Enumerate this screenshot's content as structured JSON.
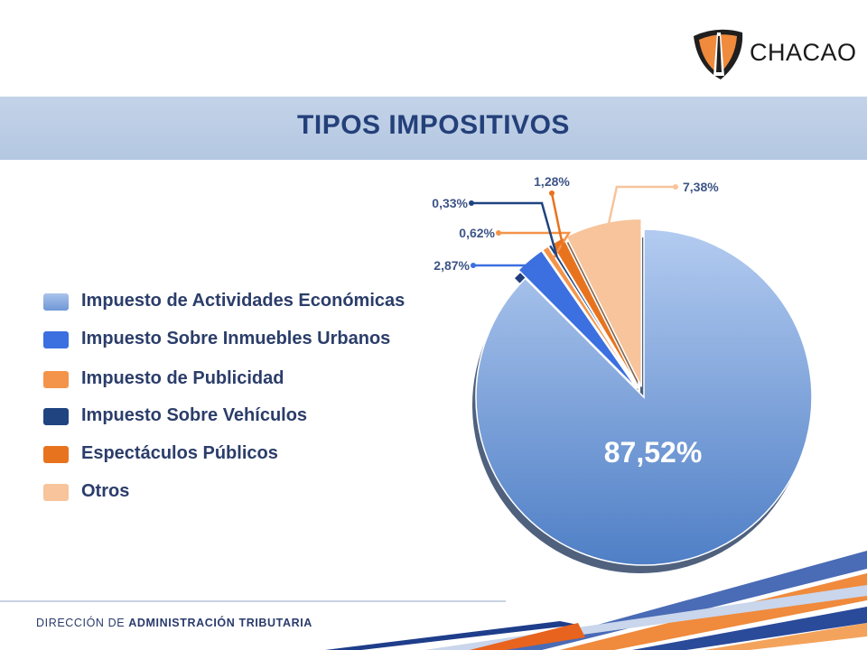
{
  "brand": {
    "name": "CHACAO"
  },
  "title": "TIPOS IMPOSITIVOS",
  "footer": {
    "prefix": "DIRECCIÓN DE",
    "bold": "ADMINISTRACIÓN TRIBUTARIA"
  },
  "colors": {
    "title": "#24407a",
    "band": "#b9cbe4",
    "footer_navy": "#2a3b6c",
    "footer_orange": "#f08a3c"
  },
  "chart_data": {
    "type": "pie",
    "title": "",
    "slices": [
      {
        "name": "Impuesto de Actividades Económicas",
        "value": 87.52,
        "label": "87,52%",
        "color": "#8fb1e3"
      },
      {
        "name": "Impuesto Sobre Inmuebles Urbanos",
        "value": 2.87,
        "label": "2,87%",
        "color": "#3c6fe0"
      },
      {
        "name": "Impuesto de Publicidad",
        "value": 0.62,
        "label": "0,62%",
        "color": "#f4944a"
      },
      {
        "name": "Impuesto Sobre Vehículos",
        "value": 0.33,
        "label": "0,33%",
        "color": "#1f4480"
      },
      {
        "name": "Espectáculos Públicos",
        "value": 1.28,
        "label": "1,28%",
        "color": "#e8731e"
      },
      {
        "name": "Otros",
        "value": 7.38,
        "label": "7,38%",
        "color": "#f7c49b"
      }
    ],
    "legend_position": "left"
  }
}
